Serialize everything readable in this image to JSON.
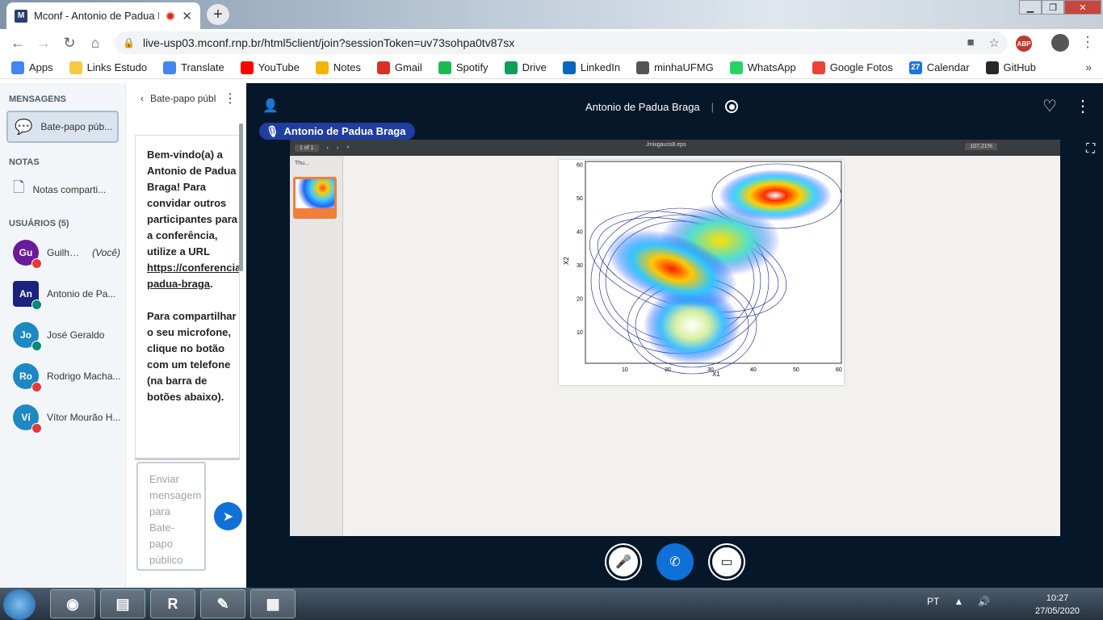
{
  "browser": {
    "tab_title": "Mconf - Antonio de Padua B",
    "tab_favicon": "M",
    "url": "live-usp03.mconf.rnp.br/html5client/join?sessionToken=uv73sohpa0tv87sx",
    "abp_label": "ABP",
    "bookmarks": [
      {
        "label": "Apps",
        "icon": "apps-grid-icon",
        "color": "#4285f4"
      },
      {
        "label": "Links Estudo",
        "icon": "folder-icon",
        "color": "#f6c945"
      },
      {
        "label": "Translate",
        "icon": "translate-icon",
        "color": "#4285f4"
      },
      {
        "label": "YouTube",
        "icon": "youtube-icon",
        "color": "#ff0000"
      },
      {
        "label": "Notes",
        "icon": "notes-icon",
        "color": "#f4b400"
      },
      {
        "label": "Gmail",
        "icon": "gmail-icon",
        "color": "#d93025"
      },
      {
        "label": "Spotify",
        "icon": "spotify-icon",
        "color": "#1db954"
      },
      {
        "label": "Drive",
        "icon": "drive-icon",
        "color": "#0f9d58"
      },
      {
        "label": "LinkedIn",
        "icon": "linkedin-icon",
        "color": "#0a66c2"
      },
      {
        "label": "minhaUFMG",
        "icon": "globe-icon",
        "color": "#555555"
      },
      {
        "label": "WhatsApp",
        "icon": "whatsapp-icon",
        "color": "#25d366"
      },
      {
        "label": "Google Fotos",
        "icon": "photos-icon",
        "color": "#ea4335"
      },
      {
        "label": "Calendar",
        "icon": "calendar-icon",
        "color": "#1a73e8",
        "glyph": "27"
      },
      {
        "label": "GitHub",
        "icon": "github-icon",
        "color": "#24292e"
      }
    ]
  },
  "sidebar": {
    "messages_heading": "MENSAGENS",
    "chat_item": "Bate-papo púb...",
    "notes_heading": "NOTAS",
    "notes_item": "Notas comparti...",
    "users_heading": "USUÁRIOS (5)",
    "you_label": "(Você)",
    "users": [
      {
        "initials": "Gu",
        "name": "Guilher...",
        "color": "#6a1b9a",
        "status_color": "#e53935",
        "is_you": true
      },
      {
        "initials": "An",
        "name": "Antonio de Pa...",
        "color": "#1a237e",
        "status_color": "#00897b",
        "presenter": true
      },
      {
        "initials": "Jo",
        "name": "José Geraldo",
        "color": "#1e88c5",
        "status_color": "#00897b"
      },
      {
        "initials": "Ro",
        "name": "Rodrigo Macha...",
        "color": "#1e88c5",
        "status_color": "#e53935"
      },
      {
        "initials": "Ví",
        "name": "Vítor Mourão H...",
        "color": "#1e88c5",
        "status_color": "#e53935"
      }
    ]
  },
  "chat": {
    "header": "Bate-papo públ",
    "welcome_1": "Bem-vindo(a) a Antonio de Padua Braga! Para convidar outros participantes para a conferência, utilize a URL",
    "welcome_link": "https://conferencia...de-padua-braga",
    "welcome_link_end": ".",
    "welcome_2": "Para compartilhar o seu microfone, clique no botão com um telefone (na barra de botões abaixo).",
    "input_placeholder": "Enviar mensagem para Bate-papo público"
  },
  "meeting": {
    "title": "Antonio de Padua Braga",
    "talking": "Antonio de Padua Braga"
  },
  "presentation": {
    "page_indicator": "of 1",
    "page_input": "1",
    "file_name": "./mixgauss8.eps",
    "zoom": "107,21%",
    "thumbs_label": "Thu...",
    "x_axis_label": "X1",
    "y_axis_label": "X2",
    "x_ticks": [
      "10",
      "20",
      "30",
      "40",
      "50",
      "60"
    ],
    "y_ticks": [
      "10",
      "20",
      "30",
      "40",
      "50",
      "60"
    ]
  },
  "taskbar": {
    "language": "PT",
    "time": "10:27",
    "date": "27/05/2020"
  }
}
